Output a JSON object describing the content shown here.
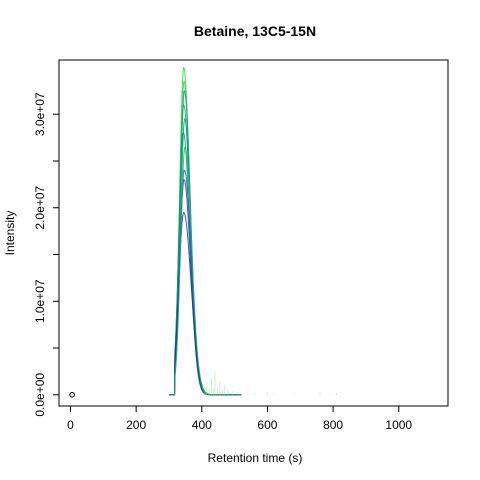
{
  "chart_data": {
    "type": "line",
    "title": "Betaine, 13C5-15N",
    "xlabel": "Retention time (s)",
    "ylabel": "Intensity",
    "xlim": [
      -35,
      1150
    ],
    "ylim": [
      -1200000,
      35800000
    ],
    "x_ticks": [
      0,
      200,
      400,
      600,
      800,
      1000
    ],
    "x_tick_labels": [
      "0",
      "200",
      "400",
      "600",
      "800",
      "1000"
    ],
    "y_ticks": [
      0,
      5000000,
      10000000,
      15000000,
      20000000,
      25000000,
      30000000
    ],
    "y_tick_labels": [
      "0.0e+00",
      "",
      "1.0e+07",
      "",
      "2.0e+07",
      "",
      "3.0e+07"
    ],
    "grid": false,
    "legend": "none",
    "marker_point": {
      "x": 5,
      "y": 0
    },
    "series": [
      {
        "color": "#22dd33",
        "peak_x": 345,
        "peak_y": 35000000,
        "width": 15
      },
      {
        "color": "#33cc55",
        "peak_x": 346,
        "peak_y": 33500000,
        "width": 15.5
      },
      {
        "color": "#129a7a",
        "peak_x": 347,
        "peak_y": 32500000,
        "width": 15
      },
      {
        "color": "#13a36e",
        "peak_x": 345,
        "peak_y": 31000000,
        "width": 16
      },
      {
        "color": "#0e9a8a",
        "peak_x": 348,
        "peak_y": 29500000,
        "width": 15
      },
      {
        "color": "#0f8f84",
        "peak_x": 344,
        "peak_y": 28000000,
        "width": 16
      },
      {
        "color": "#2a55c8",
        "peak_x": 347,
        "peak_y": 24000000,
        "width": 17
      },
      {
        "color": "#1f40b8",
        "peak_x": 346,
        "peak_y": 23000000,
        "width": 16
      },
      {
        "color": "#1a38b0",
        "peak_x": 345,
        "peak_y": 19500000,
        "width": 18
      },
      {
        "color": "#2bb34a",
        "peak_x": 349,
        "peak_y": 26500000,
        "width": 16
      }
    ],
    "noise": [
      {
        "x": 410,
        "y": 900000
      },
      {
        "x": 415,
        "y": 1400000
      },
      {
        "x": 422,
        "y": 600000
      },
      {
        "x": 430,
        "y": 1800000
      },
      {
        "x": 435,
        "y": 700000
      },
      {
        "x": 440,
        "y": 2600000
      },
      {
        "x": 448,
        "y": 900000
      },
      {
        "x": 455,
        "y": 1500000
      },
      {
        "x": 462,
        "y": 500000
      },
      {
        "x": 470,
        "y": 1100000
      },
      {
        "x": 480,
        "y": 600000
      },
      {
        "x": 495,
        "y": 400000
      },
      {
        "x": 510,
        "y": 300000
      },
      {
        "x": 560,
        "y": 200000
      },
      {
        "x": 600,
        "y": 250000
      },
      {
        "x": 620,
        "y": 150000
      },
      {
        "x": 680,
        "y": 200000
      },
      {
        "x": 760,
        "y": 250000
      },
      {
        "x": 790,
        "y": 150000
      },
      {
        "x": 810,
        "y": 200000
      }
    ]
  }
}
